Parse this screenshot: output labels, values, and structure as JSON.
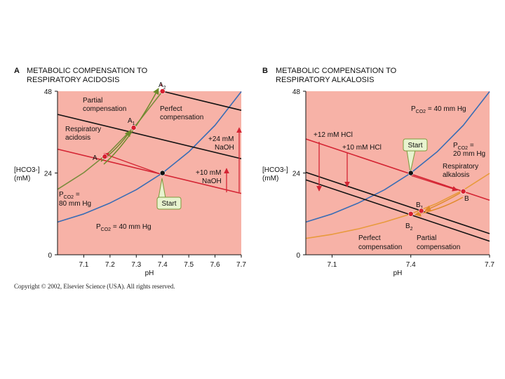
{
  "copyright": "Copyright © 2002, Elsevier Science (USA).  All rights reserved.",
  "colors": {
    "background": "#f7b2a7",
    "axis": "#111111",
    "isobar_blue": "#3a6db5",
    "isobar_green": "#7a8c3c",
    "isobar_orange": "#e89a3c",
    "normal_red": "#d42433",
    "line_black": "#111111",
    "point_red": "#d62030",
    "callout_fill": "#e8f3cf",
    "callout_stroke": "#7c9a3b"
  },
  "chart_data": [
    {
      "type": "line",
      "panel_letter": "A",
      "title_lines": [
        "METABOLIC COMPENSATION TO",
        "RESPIRATORY ACIDOSIS"
      ],
      "xlabel": "pH",
      "ylabel_lines": [
        "[HCO3-]",
        "(mM)"
      ],
      "xlim": [
        7.0,
        7.7
      ],
      "ylim": [
        0,
        48
      ],
      "xticks": [
        7.1,
        7.2,
        7.3,
        7.4,
        7.5,
        7.6,
        7.7
      ],
      "yticks": [
        0,
        24,
        48
      ],
      "series": [
        {
          "name": "PCO2 = 40 mm Hg isobar",
          "color": "#3a6db5",
          "x": [
            7.0,
            7.1,
            7.2,
            7.3,
            7.4,
            7.5,
            7.6,
            7.7
          ],
          "y": [
            9.6,
            12.0,
            15.2,
            19.1,
            24.0,
            30.2,
            38.0,
            47.9
          ]
        },
        {
          "name": "PCO2 = 80 mm Hg isobar",
          "color": "#7a8c3c",
          "x": [
            7.0,
            7.1,
            7.2,
            7.3,
            7.4
          ],
          "y": [
            19.2,
            24.1,
            30.3,
            38.2,
            48.0
          ]
        },
        {
          "name": "Normal buffer line",
          "color": "#d42433",
          "x": [
            7.0,
            7.7
          ],
          "y": [
            31.0,
            18.0
          ]
        },
        {
          "name": "Buffer line +10 mM NaOH",
          "color": "#111111",
          "x": [
            7.0,
            7.7
          ],
          "y": [
            41.2,
            28.2
          ]
        },
        {
          "name": "Buffer line +24 mM NaOH",
          "color": "#111111",
          "x": [
            7.4,
            7.7
          ],
          "y": [
            48.0,
            42.4
          ]
        }
      ],
      "points": [
        {
          "label": "A",
          "x": 7.18,
          "y": 28.8,
          "color": "#d62030"
        },
        {
          "label": "A1",
          "x": 7.29,
          "y": 37.3,
          "color": "#d62030"
        },
        {
          "label": "A2",
          "x": 7.4,
          "y": 48.0,
          "color": "#d62030"
        },
        {
          "label": "Start",
          "x": 7.4,
          "y": 24.0,
          "color": "#111111"
        }
      ],
      "labels": {
        "pco2_40_main": "P",
        "pco2_40_sub": "CO2",
        "pco2_40_rest": " = 40 mm Hg",
        "pco2_80_main": "P",
        "pco2_80_sub": "CO2",
        "pco2_80_rest": " =",
        "pco2_80_line2": "80 mm Hg",
        "partial_line1": "Partial",
        "partial_line2": "compensation",
        "perfect_line1": "Perfect",
        "perfect_line2": "compensation",
        "resp_line1": "Respiratory",
        "resp_line2": "acidosis",
        "naoh24_line1": "+24 mM",
        "naoh24_line2": "NaOH",
        "naoh10_line1": "+10 mM",
        "naoh10_line2": "NaOH",
        "point_A": "A",
        "point_A1_main": "A",
        "point_A1_sub": "1",
        "point_A2_main": "A",
        "point_A2_sub": "2",
        "start": "Start"
      }
    },
    {
      "type": "line",
      "panel_letter": "B",
      "title_lines": [
        "METABOLIC COMPENSATION TO",
        "RESPIRATORY ALKALOSIS"
      ],
      "xlabel": "pH",
      "ylabel_lines": [
        "[HCO3-]",
        "(mM)"
      ],
      "xlim": [
        7.0,
        7.7
      ],
      "ylim": [
        0,
        48
      ],
      "xticks": [
        7.1,
        7.4,
        7.7
      ],
      "yticks": [
        0,
        24,
        48
      ],
      "series": [
        {
          "name": "PCO2 = 40 mm Hg isobar",
          "color": "#3a6db5",
          "x": [
            7.0,
            7.1,
            7.2,
            7.3,
            7.4,
            7.5,
            7.6,
            7.7
          ],
          "y": [
            9.6,
            12.0,
            15.2,
            19.1,
            24.0,
            30.2,
            38.0,
            47.9
          ]
        },
        {
          "name": "PCO2 = 20 mm Hg isobar",
          "color": "#e89a3c",
          "x": [
            7.0,
            7.1,
            7.2,
            7.3,
            7.4,
            7.5,
            7.6,
            7.7
          ],
          "y": [
            4.8,
            6.0,
            7.6,
            9.6,
            12.0,
            15.1,
            19.0,
            23.9
          ]
        },
        {
          "name": "Normal buffer line",
          "color": "#d42433",
          "x": [
            7.0,
            7.7
          ],
          "y": [
            34.0,
            16.0
          ]
        },
        {
          "name": "Buffer line +10 mM HCl",
          "color": "#111111",
          "x": [
            7.0,
            7.7
          ],
          "y": [
            24.2,
            6.2
          ]
        },
        {
          "name": "Buffer line +12 mM HCl",
          "color": "#111111",
          "x": [
            7.0,
            7.7
          ],
          "y": [
            22.0,
            4.0
          ]
        }
      ],
      "points": [
        {
          "label": "B",
          "x": 7.6,
          "y": 18.6,
          "color": "#d62030"
        },
        {
          "label": "B1",
          "x": 7.44,
          "y": 12.9,
          "color": "#d62030"
        },
        {
          "label": "B2",
          "x": 7.4,
          "y": 12.0,
          "color": "#d62030"
        },
        {
          "label": "Start",
          "x": 7.4,
          "y": 24.0,
          "color": "#111111"
        }
      ],
      "labels": {
        "pco2_40_main": "P",
        "pco2_40_sub": "CO2",
        "pco2_40_rest": " = 40 mm Hg",
        "pco2_20_main": "P",
        "pco2_20_sub": "CO2",
        "pco2_20_rest": " =",
        "pco2_20_line2": "20 mm Hg",
        "resp_line1": "Respiratory",
        "resp_line2": "alkalosis",
        "hcl12": "+12 mM HCl",
        "hcl10": "+10 mM HCl",
        "perfect_line1": "Perfect",
        "perfect_line2": "compensation",
        "partial_line1": "Partial",
        "partial_line2": "compensation",
        "point_B": "B",
        "point_B1_main": "B",
        "point_B1_sub": "1",
        "point_B2_main": "B",
        "point_B2_sub": "2",
        "start": "Start"
      }
    }
  ]
}
